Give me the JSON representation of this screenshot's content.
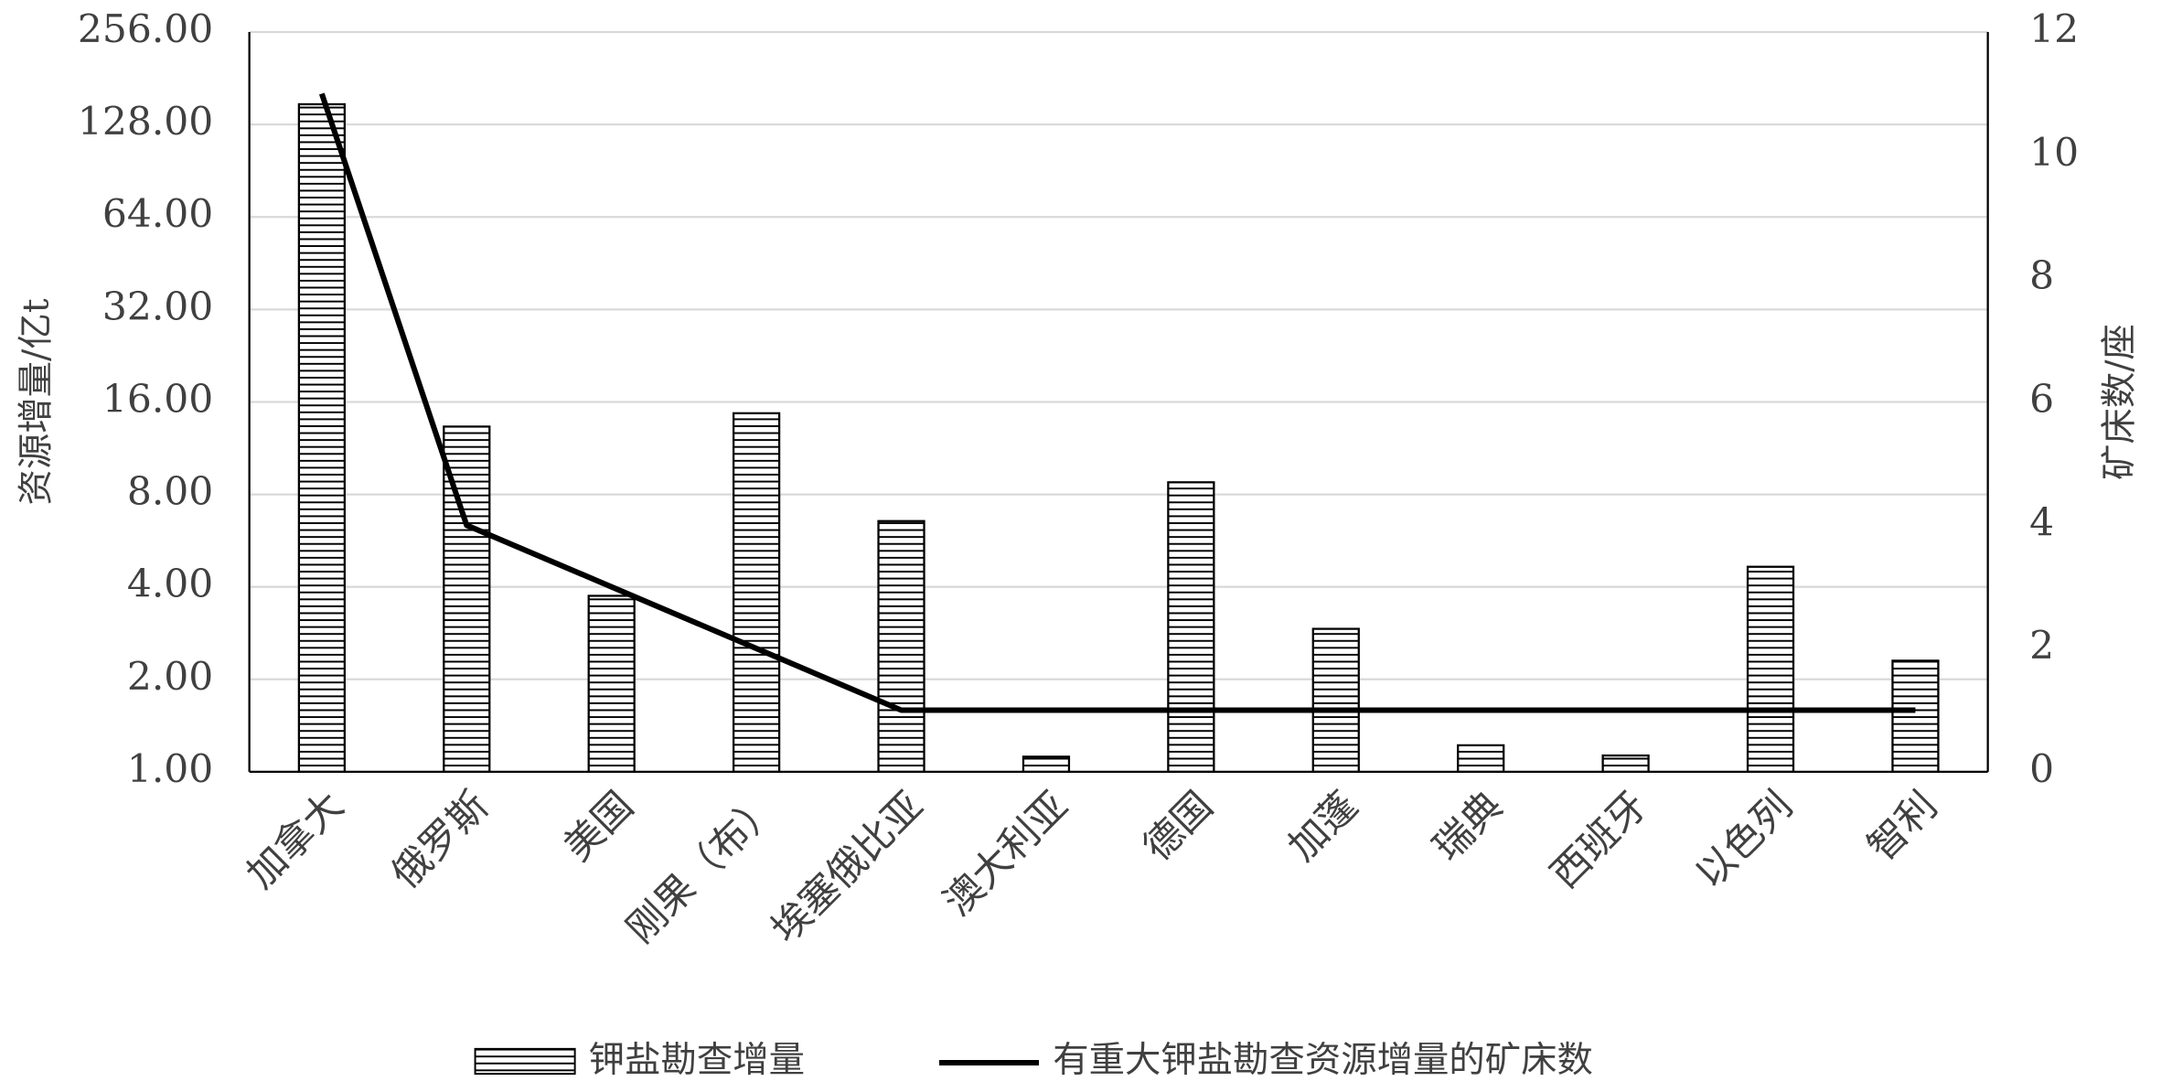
{
  "chart_data": {
    "type": "bar",
    "categories": [
      "加拿大",
      "俄罗斯",
      "美国",
      "刚果（布）",
      "埃塞俄比亚",
      "澳大利亚",
      "德国",
      "加蓬",
      "瑞典",
      "西班牙",
      "以色列",
      "智利"
    ],
    "series": [
      {
        "name": "钾盐勘查增量",
        "type": "bar",
        "color": "#000000",
        "values": [
          149,
          13.3,
          3.74,
          14.7,
          6.55,
          1.12,
          8.76,
          2.92,
          1.22,
          1.13,
          4.65,
          2.3
        ]
      },
      {
        "name": "有重大钾盐勘查资源增量的矿床数",
        "type": "line",
        "axis": "y2",
        "color": "#000000",
        "values": [
          11,
          4,
          3,
          2,
          1,
          1,
          1,
          1,
          1,
          1,
          1,
          1
        ]
      }
    ],
    "y_label": "资源增量/亿t",
    "y2_label": "矿床数/座",
    "yscale": "log",
    "ylim": [
      1,
      256
    ],
    "yticks": [
      {
        "value": 1,
        "label": "1.00"
      },
      {
        "value": 2,
        "label": "2.00"
      },
      {
        "value": 4,
        "label": "4.00"
      },
      {
        "value": 8,
        "label": "8.00"
      },
      {
        "value": 16,
        "label": "16.00"
      },
      {
        "value": 32,
        "label": "32.00"
      },
      {
        "value": 64,
        "label": "64.00"
      },
      {
        "value": 128,
        "label": "128.00"
      },
      {
        "value": 256,
        "label": "256.00"
      }
    ],
    "y2lim": [
      0,
      12
    ],
    "y2ticks": [
      0,
      2,
      4,
      6,
      8,
      10,
      12
    ],
    "grid": true,
    "legend": "bottom"
  }
}
